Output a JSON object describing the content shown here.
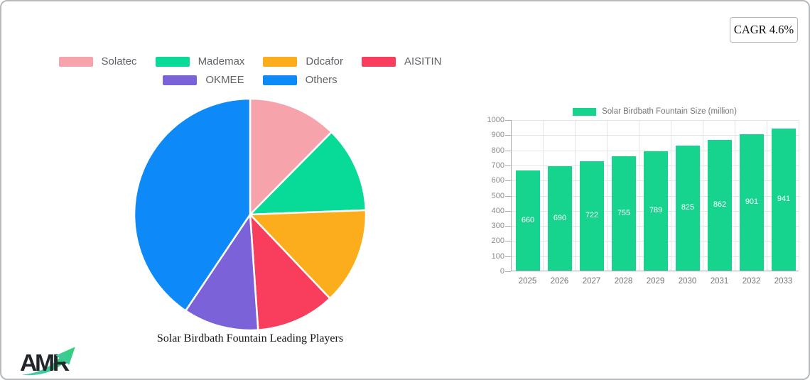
{
  "badge": {
    "label": "CAGR 4.6%"
  },
  "logo": {
    "text": "AMR"
  },
  "pie_section": {
    "title": "Solar Birdbath Fountain Leading Players",
    "legend_rows": [
      [
        "Solatec",
        "Mademax",
        "Ddcafor",
        "AISITIN"
      ],
      [
        "OKMEE",
        "Others"
      ]
    ]
  },
  "bar_section": {
    "legend_label": "Solar Birdbath Fountain Size (million)"
  },
  "chart_data": [
    {
      "type": "pie",
      "title": "Solar Birdbath Fountain Leading Players",
      "labels": [
        "Solatec",
        "Mademax",
        "Ddcafor",
        "AISITIN",
        "OKMEE",
        "Others"
      ],
      "values": [
        12.4,
        12.0,
        13.5,
        11.0,
        10.5,
        40.6
      ],
      "colors": [
        "#F7A3AB",
        "#07DB97",
        "#FBAD1B",
        "#F93E5D",
        "#7C62D8",
        "#0E89F8"
      ],
      "start_angle": "top",
      "direction": "clockwise",
      "slice_border_color": "#ffffff",
      "legend_position": "top"
    },
    {
      "type": "bar",
      "title": "Solar Birdbath Fountain Size (million)",
      "categories": [
        "2025",
        "2026",
        "2027",
        "2028",
        "2029",
        "2030",
        "2031",
        "2032",
        "2033"
      ],
      "values": [
        660,
        690,
        722,
        755,
        789,
        825,
        862,
        901,
        941
      ],
      "bar_color": "#16D38E",
      "value_label_color": "#ffffff",
      "ylim": [
        0,
        1000
      ],
      "yticks": [
        0,
        100,
        200,
        300,
        400,
        500,
        600,
        700,
        800,
        900,
        1000
      ],
      "grid": true,
      "legend_position": "top"
    }
  ],
  "colors": {
    "accent_green": "#16D38E",
    "legend_text": "#5f6368",
    "axis_text": "#8a8a8a",
    "card_border": "#b7babd",
    "logo_text": "#22262b",
    "logo_arrow_start": "#4fc3b4",
    "logo_arrow_end": "#2bd36f"
  }
}
